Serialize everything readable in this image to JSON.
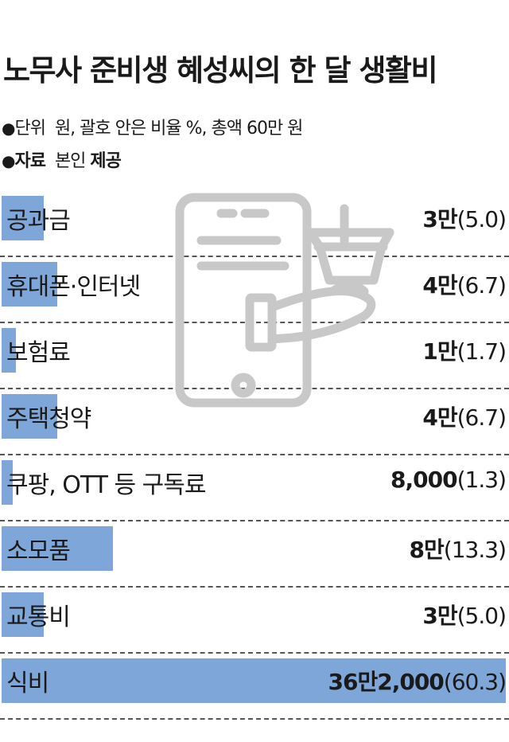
{
  "title": "노무사 준비생 혜성씨의 한 달 생활비",
  "notes": {
    "unit_label": "단위",
    "unit_text": "원, 괄호 안은 비율 %, 총액 60만 원",
    "source_label": "자료",
    "source_text": "본인",
    "source_suffix": "제공"
  },
  "icons": {
    "bullet": "●",
    "watermark": "phone-hand-basket-icon"
  },
  "colors": {
    "bar": "#7fa6d8",
    "watermark": "#c8c8c8"
  },
  "chart_data": {
    "type": "bar",
    "title": "노무사 준비생 혜성씨의 한 달 생활비",
    "categories": [
      "공과금",
      "휴대폰·인터넷",
      "보험료",
      "주택청약",
      "쿠팡, OTT 등 구독료",
      "소모품",
      "교통비",
      "식비"
    ],
    "amount_labels": [
      "3만",
      "4만",
      "1만",
      "4만",
      "8,000",
      "8만",
      "3만",
      "36만2,000"
    ],
    "percent_labels": [
      "(5.0)",
      "(6.7)",
      "(1.7)",
      "(6.7)",
      "(1.3)",
      "(13.3)",
      "(5.0)",
      "(60.3)"
    ],
    "values": [
      30000,
      40000,
      10000,
      40000,
      8000,
      80000,
      30000,
      362000
    ],
    "percents": [
      5.0,
      6.7,
      1.7,
      6.7,
      1.3,
      13.3,
      5.0,
      60.3
    ],
    "total": 600000,
    "xlim": [
      0,
      60.3
    ]
  }
}
